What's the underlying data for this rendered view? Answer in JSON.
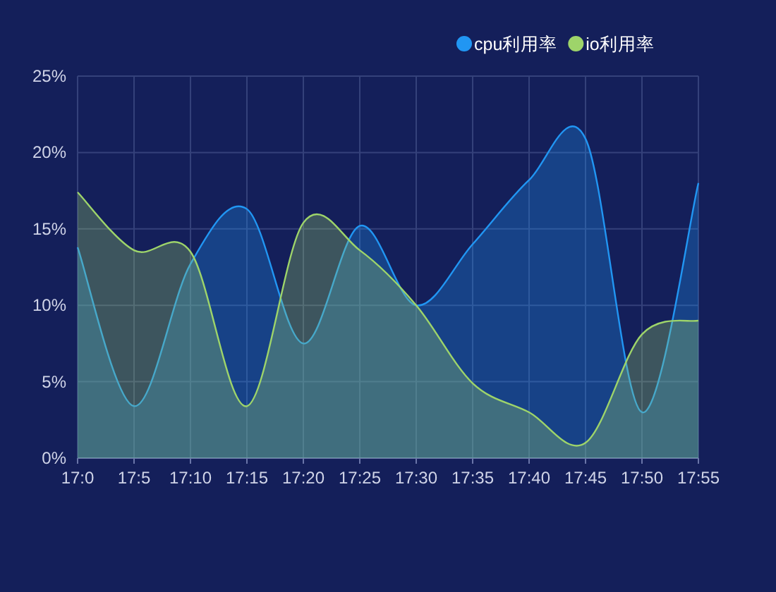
{
  "chart_data": {
    "type": "area",
    "categories": [
      "17:0",
      "17:5",
      "17:10",
      "17:15",
      "17:20",
      "17:25",
      "17:30",
      "17:35",
      "17:40",
      "17:45",
      "17:50",
      "17:55"
    ],
    "series": [
      {
        "name": "cpu利用率",
        "color": "#2196f3",
        "values": [
          13.8,
          3.4,
          12.7,
          16.3,
          7.5,
          15.2,
          10.0,
          14.0,
          18.2,
          20.9,
          3.0,
          18.0
        ]
      },
      {
        "name": "io利用率",
        "color": "#9ed46a",
        "values": [
          17.4,
          13.6,
          13.5,
          3.4,
          15.4,
          13.6,
          10.0,
          4.9,
          3.0,
          1.0,
          8.1,
          9.0
        ]
      }
    ],
    "ylim": [
      0,
      25
    ],
    "yticks": [
      {
        "value": 0,
        "label": "0%"
      },
      {
        "value": 5,
        "label": "5%"
      },
      {
        "value": 10,
        "label": "10%"
      },
      {
        "value": 15,
        "label": "15%"
      },
      {
        "value": 20,
        "label": "20%"
      },
      {
        "value": 25,
        "label": "25%"
      }
    ],
    "grid": true,
    "legend": "top right",
    "marker": "none",
    "line_style": "solid"
  }
}
